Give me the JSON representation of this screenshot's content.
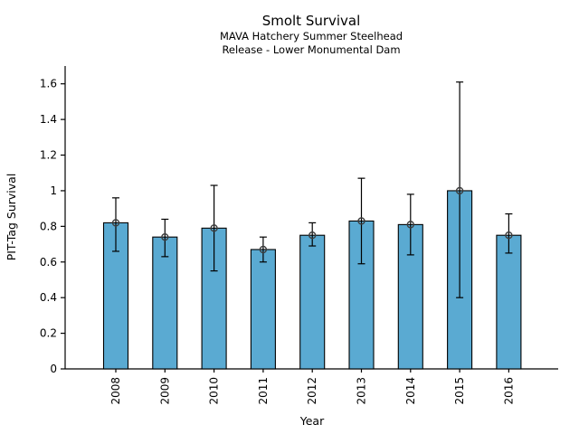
{
  "title": "Smolt Survival",
  "subtitle_line1": "MAVA Hatchery Summer Steelhead",
  "subtitle_line2": "Release - Lower Monumental Dam",
  "chart_data": {
    "type": "bar",
    "title": "Smolt Survival",
    "subtitle_line1": "MAVA Hatchery Summer Steelhead",
    "subtitle_line2": "Release - Lower Monumental Dam",
    "xlabel": "Year",
    "ylabel": "PIT-Tag Survival",
    "categories": [
      "2008",
      "2009",
      "2010",
      "2011",
      "2012",
      "2013",
      "2014",
      "2015",
      "2016"
    ],
    "values": [
      0.82,
      0.74,
      0.79,
      0.67,
      0.75,
      0.83,
      0.81,
      1.0,
      0.75
    ],
    "error_low": [
      0.66,
      0.63,
      0.55,
      0.6,
      0.69,
      0.59,
      0.64,
      0.4,
      0.65
    ],
    "error_high": [
      0.96,
      0.84,
      1.03,
      0.74,
      0.82,
      1.07,
      0.98,
      1.61,
      0.87
    ],
    "ylim": [
      0,
      1.7
    ],
    "yticks": [
      0,
      0.2,
      0.4,
      0.6,
      0.8,
      1.0,
      1.2,
      1.4,
      1.6
    ],
    "ytick_labels": [
      "0",
      "0.2",
      "0.4",
      "0.6",
      "0.8",
      "1",
      "1.2",
      "1.4",
      "1.6"
    ],
    "grid": false,
    "legend": null,
    "marker": "open-circle",
    "bar_color": "#5AAAD2",
    "bar_edge_color": "#000000",
    "error_color": "#000000",
    "marker_edge_color": "#3d3d3d",
    "axis_color": "#000000"
  }
}
